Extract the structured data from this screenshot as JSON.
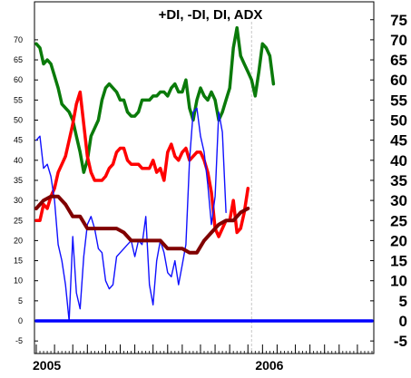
{
  "chart_data": {
    "type": "line",
    "title": "+DI, -DI, DI, ADX",
    "xlabel": "",
    "ylabel": "",
    "ylim": [
      -8,
      80
    ],
    "y_ticks": [
      -5,
      0,
      5,
      10,
      15,
      20,
      25,
      30,
      35,
      40,
      45,
      50,
      55,
      60,
      65,
      70
    ],
    "y_ticks_right": [
      -5,
      0,
      5,
      10,
      15,
      20,
      25,
      30,
      35,
      40,
      45,
      50,
      55,
      60,
      65,
      70,
      75
    ],
    "x_labels": [
      {
        "text": "2005",
        "x": 0
      },
      {
        "text": "2006",
        "x": 61
      }
    ],
    "xlim": [
      0,
      92
    ],
    "x_minor_ticks": 92,
    "x_major_ticks": [
      0,
      5,
      10,
      14,
      19,
      23,
      27,
      32,
      36,
      40,
      45,
      49,
      53,
      58,
      62,
      66,
      71,
      75,
      79,
      83,
      88
    ],
    "divider_x": 59,
    "grid": false,
    "series": [
      {
        "key": "plusdi",
        "color": "#0a7a0a",
        "width": 3.5,
        "points": [
          [
            0,
            69
          ],
          [
            1,
            68
          ],
          [
            2,
            64
          ],
          [
            3,
            65
          ],
          [
            4,
            64
          ],
          [
            6,
            58
          ],
          [
            7,
            54
          ],
          [
            9,
            52
          ],
          [
            10,
            50
          ],
          [
            11,
            46
          ],
          [
            12,
            42
          ],
          [
            13,
            37
          ],
          [
            14,
            40
          ],
          [
            15,
            46
          ],
          [
            17,
            50
          ],
          [
            18,
            55
          ],
          [
            19,
            58
          ],
          [
            20,
            59
          ],
          [
            22,
            57
          ],
          [
            23,
            55
          ],
          [
            24,
            55
          ],
          [
            25,
            52
          ],
          [
            26,
            51
          ],
          [
            27,
            51
          ],
          [
            28,
            52
          ],
          [
            29,
            55
          ],
          [
            30,
            55
          ],
          [
            31,
            55
          ],
          [
            32,
            56
          ],
          [
            33,
            56
          ],
          [
            34,
            57
          ],
          [
            35,
            57
          ],
          [
            36,
            56
          ],
          [
            37,
            58
          ],
          [
            38,
            59
          ],
          [
            39,
            57
          ],
          [
            40,
            57
          ],
          [
            41,
            60
          ],
          [
            42,
            53
          ],
          [
            43,
            50
          ],
          [
            44,
            55
          ],
          [
            45,
            58
          ],
          [
            46,
            56
          ],
          [
            47,
            55
          ],
          [
            48,
            57
          ],
          [
            49,
            55
          ],
          [
            50,
            50
          ],
          [
            51,
            52
          ],
          [
            52,
            55
          ],
          [
            53,
            58
          ],
          [
            54,
            68
          ],
          [
            55,
            73
          ],
          [
            56,
            66
          ],
          [
            57,
            64
          ],
          [
            58,
            62
          ],
          [
            59,
            60
          ],
          [
            60,
            56
          ],
          [
            61,
            62
          ],
          [
            62,
            69
          ],
          [
            63,
            68
          ],
          [
            64,
            66
          ],
          [
            65,
            59
          ]
        ]
      },
      {
        "key": "minusdi",
        "color": "#ff0000",
        "width": 3.5,
        "points": [
          [
            0,
            25
          ],
          [
            1,
            25
          ],
          [
            2,
            29
          ],
          [
            3,
            28
          ],
          [
            4,
            31
          ],
          [
            5,
            33
          ],
          [
            6,
            37
          ],
          [
            7,
            39
          ],
          [
            8,
            41
          ],
          [
            9,
            45
          ],
          [
            10,
            49
          ],
          [
            11,
            54
          ],
          [
            12,
            57
          ],
          [
            13,
            49
          ],
          [
            14,
            41
          ],
          [
            15,
            37
          ],
          [
            16,
            35
          ],
          [
            17,
            35
          ],
          [
            18,
            35
          ],
          [
            19,
            36
          ],
          [
            20,
            38
          ],
          [
            21,
            39
          ],
          [
            22,
            42
          ],
          [
            23,
            43
          ],
          [
            24,
            43
          ],
          [
            25,
            40
          ],
          [
            26,
            39
          ],
          [
            27,
            39
          ],
          [
            28,
            39
          ],
          [
            29,
            38
          ],
          [
            30,
            38
          ],
          [
            31,
            38
          ],
          [
            32,
            40
          ],
          [
            33,
            37
          ],
          [
            34,
            38
          ],
          [
            35,
            35
          ],
          [
            36,
            42
          ],
          [
            37,
            44
          ],
          [
            38,
            41
          ],
          [
            39,
            40
          ],
          [
            40,
            42
          ],
          [
            41,
            43
          ],
          [
            42,
            40
          ],
          [
            43,
            41
          ],
          [
            44,
            42
          ],
          [
            45,
            42
          ],
          [
            46,
            40
          ],
          [
            47,
            37
          ],
          [
            48,
            32
          ],
          [
            49,
            23
          ],
          [
            50,
            21
          ],
          [
            51,
            23
          ],
          [
            52,
            25
          ],
          [
            53,
            25
          ],
          [
            54,
            30
          ],
          [
            55,
            22
          ],
          [
            56,
            23
          ],
          [
            57,
            27
          ],
          [
            58,
            33
          ]
        ]
      },
      {
        "key": "di",
        "color": "#1010ff",
        "width": 1.4,
        "points": [
          [
            0,
            45
          ],
          [
            1,
            46
          ],
          [
            2,
            38
          ],
          [
            3,
            39
          ],
          [
            4,
            36
          ],
          [
            5,
            30
          ],
          [
            6,
            19
          ],
          [
            7,
            15
          ],
          [
            8,
            9
          ],
          [
            9,
            0
          ],
          [
            10,
            21
          ],
          [
            11,
            7
          ],
          [
            12,
            3
          ],
          [
            13,
            16
          ],
          [
            14,
            24
          ],
          [
            15,
            26
          ],
          [
            16,
            23
          ],
          [
            17,
            18
          ],
          [
            18,
            17
          ],
          [
            19,
            10
          ],
          [
            20,
            8
          ],
          [
            21,
            9
          ],
          [
            22,
            16
          ],
          [
            23,
            17
          ],
          [
            24,
            18
          ],
          [
            25,
            19
          ],
          [
            26,
            20
          ],
          [
            27,
            16
          ],
          [
            28,
            20
          ],
          [
            29,
            19
          ],
          [
            30,
            26
          ],
          [
            31,
            9
          ],
          [
            32,
            4
          ],
          [
            33,
            15
          ],
          [
            34,
            20
          ],
          [
            35,
            17
          ],
          [
            36,
            12
          ],
          [
            37,
            11
          ],
          [
            38,
            15
          ],
          [
            39,
            9
          ],
          [
            40,
            14
          ],
          [
            41,
            19
          ],
          [
            42,
            40
          ],
          [
            43,
            52
          ],
          [
            44,
            53
          ],
          [
            45,
            46
          ],
          [
            46,
            42
          ],
          [
            47,
            34
          ],
          [
            48,
            24
          ],
          [
            49,
            31
          ],
          [
            50,
            52
          ],
          [
            51,
            47
          ],
          [
            52,
            27
          ]
        ]
      },
      {
        "key": "adx",
        "color": "#800000",
        "width": 4,
        "points": [
          [
            0,
            28
          ],
          [
            2,
            30
          ],
          [
            4,
            31
          ],
          [
            6,
            31
          ],
          [
            8,
            29
          ],
          [
            10,
            26
          ],
          [
            12,
            26
          ],
          [
            14,
            23
          ],
          [
            16,
            23
          ],
          [
            18,
            23
          ],
          [
            20,
            23
          ],
          [
            22,
            23
          ],
          [
            24,
            22
          ],
          [
            26,
            20
          ],
          [
            28,
            20
          ],
          [
            30,
            20
          ],
          [
            32,
            20
          ],
          [
            34,
            20
          ],
          [
            36,
            18
          ],
          [
            38,
            18
          ],
          [
            40,
            18
          ],
          [
            42,
            17
          ],
          [
            44,
            17
          ],
          [
            46,
            20
          ],
          [
            48,
            22
          ],
          [
            50,
            24
          ],
          [
            52,
            25
          ],
          [
            54,
            25
          ],
          [
            56,
            27
          ],
          [
            58,
            28
          ]
        ]
      },
      {
        "key": "zero",
        "color": "#0000ff",
        "width": 3.5,
        "points": [
          [
            0,
            0
          ],
          [
            92,
            0
          ]
        ]
      }
    ]
  }
}
